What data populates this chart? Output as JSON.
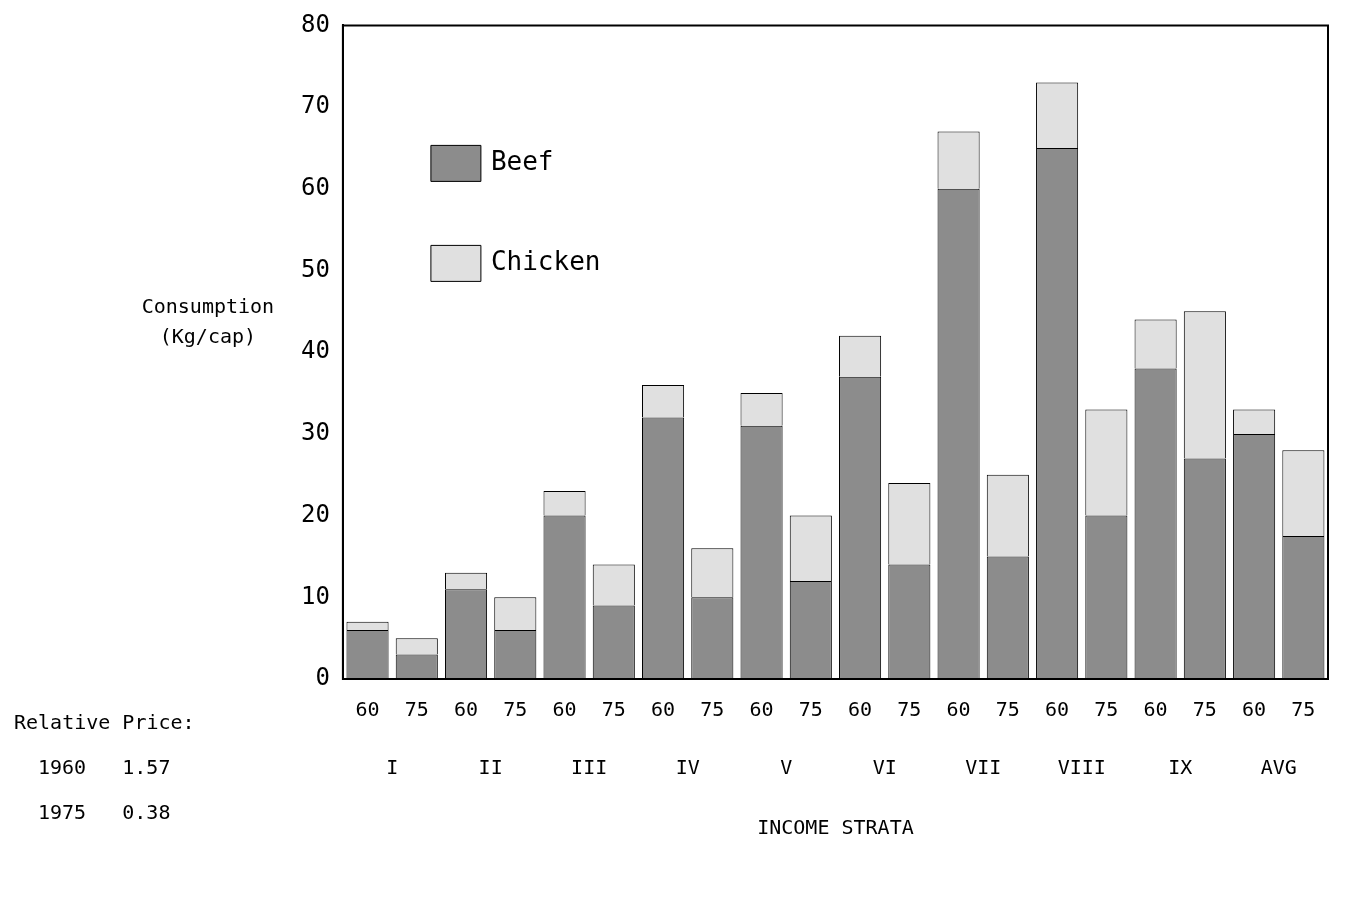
{
  "chart_data": {
    "type": "bar",
    "stacked": true,
    "ylabel": "Consumption (Kg/cap)",
    "xlabel": "INCOME STRATA",
    "categories": [
      "60",
      "75",
      "60",
      "75",
      "60",
      "75",
      "60",
      "75",
      "60",
      "75",
      "60",
      "75",
      "60",
      "75",
      "60",
      "75",
      "60",
      "75",
      "60",
      "75"
    ],
    "series": [
      {
        "name": "Beef",
        "color": "#8c8c8c",
        "values": [
          6,
          3,
          11,
          6,
          20,
          9,
          32,
          10,
          31,
          12,
          37,
          14,
          60,
          15,
          65,
          20,
          38,
          27,
          30,
          17.5
        ]
      },
      {
        "name": "Chicken",
        "color": "#e0e0e0",
        "values": [
          1,
          2,
          2,
          4,
          3,
          5,
          4,
          6,
          4,
          8,
          5,
          10,
          7,
          10,
          8,
          13,
          6,
          18,
          3,
          10.5
        ]
      }
    ],
    "ylim": [
      0,
      80
    ],
    "yticks": [
      0,
      10,
      20,
      30,
      40,
      50,
      60,
      70,
      80
    ],
    "grid": false,
    "legend": "top left",
    "annotations": [
      "I",
      "II",
      "III",
      "IV",
      "V",
      "VI",
      "VII",
      "VIII",
      "IX",
      "AVG",
      "Relative Price:",
      "1960   1.57",
      "1975   0.38"
    ]
  }
}
